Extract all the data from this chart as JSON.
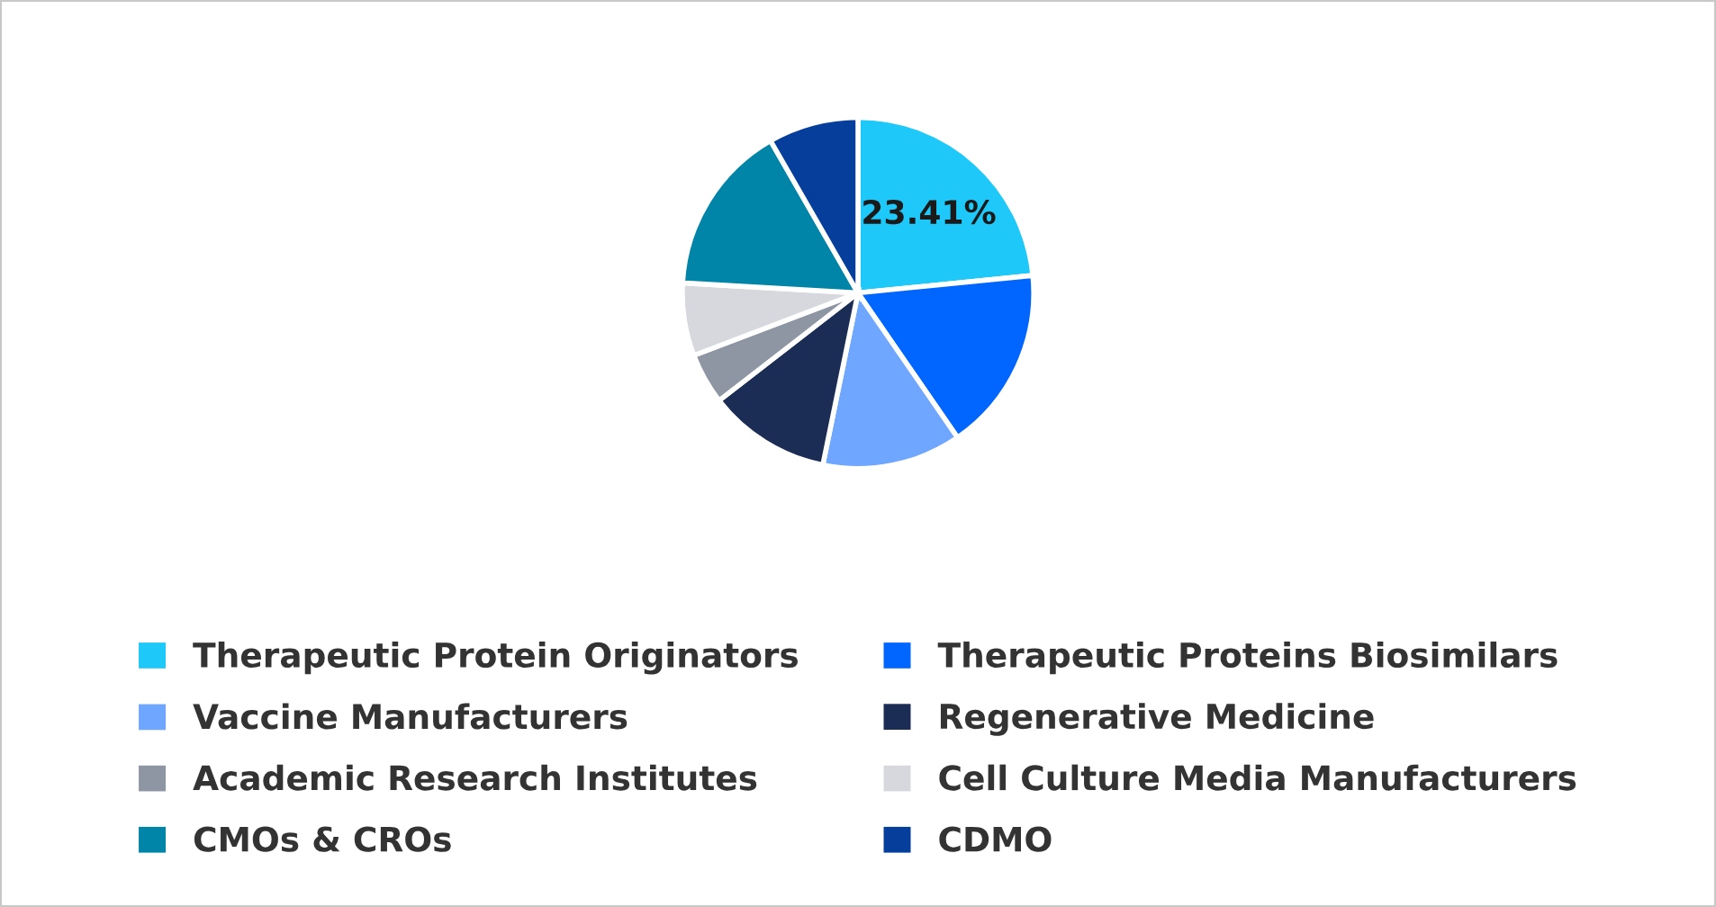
{
  "chart_data": {
    "type": "pie",
    "categories": [
      "Therapeutic Protein Originators",
      "Therapeutic Proteins Biosimilars",
      "Vaccine Manufacturers",
      "Regenerative Medicine",
      "Academic Research Institutes",
      "Cell Culture Media Manufacturers",
      "CMOs & CROs",
      "CDMO"
    ],
    "values": [
      23.41,
      17.0,
      12.8,
      11.3,
      4.7,
      6.7,
      15.79,
      8.3
    ],
    "colors": [
      "#1ec8f8",
      "#0066ff",
      "#6fa6ff",
      "#1b2d55",
      "#8e96a3",
      "#d6d8dd",
      "#0085a8",
      "#063e9c"
    ],
    "value_labels": [
      "23.41%",
      null,
      null,
      null,
      null,
      null,
      null,
      null
    ],
    "legend": "bottom"
  }
}
